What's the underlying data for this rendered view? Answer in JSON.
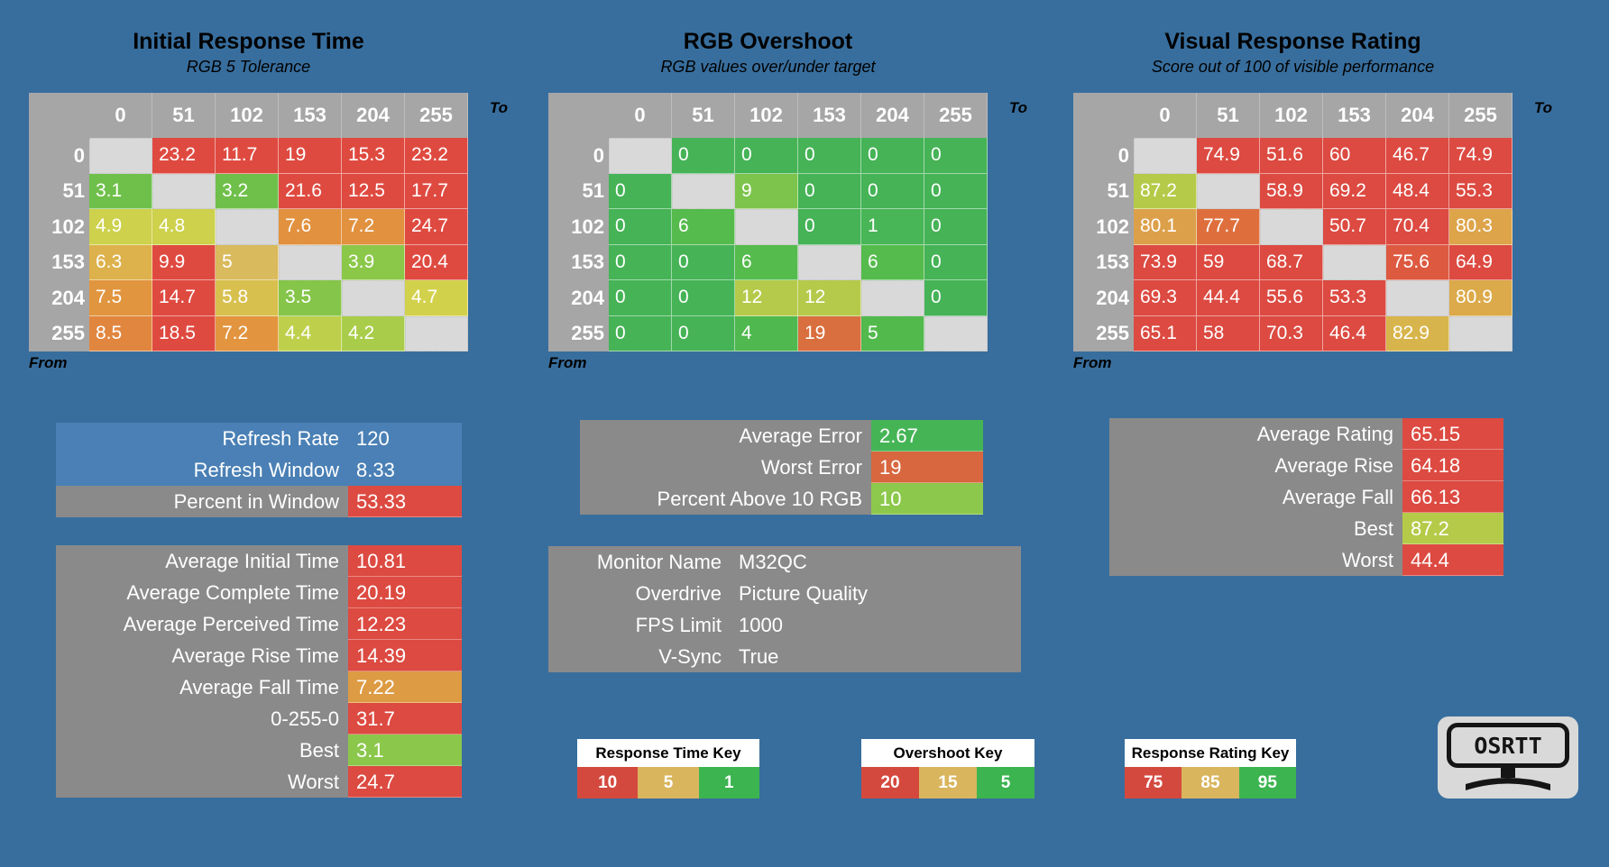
{
  "page": {
    "background": "#386e9d"
  },
  "chart_data": [
    {
      "type": "heatmap",
      "title": "Initial Response Time",
      "subtitle": "RGB 5 Tolerance",
      "col_axis_label": "To",
      "row_axis_label": "From",
      "columns": [
        "0",
        "51",
        "102",
        "153",
        "204",
        "255"
      ],
      "rows": [
        "0",
        "51",
        "102",
        "153",
        "204",
        "255"
      ],
      "values": [
        [
          null,
          "23.2",
          "11.7",
          "19",
          "15.3",
          "23.2"
        ],
        [
          "3.1",
          null,
          "3.2",
          "21.6",
          "12.5",
          "17.7"
        ],
        [
          "4.9",
          "4.8",
          null,
          "7.6",
          "7.2",
          "24.7"
        ],
        [
          "6.3",
          "9.9",
          "5",
          null,
          "3.9",
          "20.4"
        ],
        [
          "7.5",
          "14.7",
          "5.8",
          "3.5",
          null,
          "4.7"
        ],
        [
          "8.5",
          "18.5",
          "7.2",
          "4.4",
          "4.2",
          null
        ]
      ],
      "colors": [
        [
          null,
          "#df4a40",
          "#df4a40",
          "#df4a40",
          "#df4a40",
          "#df4a40"
        ],
        [
          "#6fc04a",
          null,
          "#6fc04a",
          "#df4a40",
          "#df4a40",
          "#df4a40"
        ],
        [
          "#cdd14b",
          "#cdd14b",
          null,
          "#e2913f",
          "#e2913f",
          "#df4a40"
        ],
        [
          "#ddb14b",
          "#df4a40",
          "#d9ba5c",
          null,
          "#8bc84a",
          "#df4a40"
        ],
        [
          "#e1953f",
          "#df4a40",
          "#d8c04f",
          "#85c54a",
          null,
          "#d2d14b"
        ],
        [
          "#e1863f",
          "#df4a40",
          "#e2943e",
          "#bed04b",
          "#a9cd4a",
          null
        ]
      ]
    },
    {
      "type": "heatmap",
      "title": "RGB Overshoot",
      "subtitle": "RGB values over/under target",
      "col_axis_label": "To",
      "row_axis_label": "From",
      "columns": [
        "0",
        "51",
        "102",
        "153",
        "204",
        "255"
      ],
      "rows": [
        "0",
        "51",
        "102",
        "153",
        "204",
        "255"
      ],
      "values": [
        [
          null,
          "0",
          "0",
          "0",
          "0",
          "0"
        ],
        [
          "0",
          null,
          "9",
          "0",
          "0",
          "0"
        ],
        [
          "0",
          "6",
          null,
          "0",
          "1",
          "0"
        ],
        [
          "0",
          "0",
          "6",
          null,
          "6",
          "0"
        ],
        [
          "0",
          "0",
          "12",
          "12",
          null,
          "0"
        ],
        [
          "0",
          "0",
          "4",
          "19",
          "5",
          null
        ]
      ],
      "colors": [
        [
          null,
          "#45b356",
          "#45b356",
          "#45b356",
          "#45b356",
          "#45b356"
        ],
        [
          "#45b356",
          null,
          "#7cc44c",
          "#45b356",
          "#45b356",
          "#45b356"
        ],
        [
          "#45b356",
          "#55bb4c",
          null,
          "#45b356",
          "#48b556",
          "#45b356"
        ],
        [
          "#45b356",
          "#45b356",
          "#55bb4c",
          null,
          "#55bb4c",
          "#45b356"
        ],
        [
          "#45b356",
          "#45b356",
          "#b5ca4a",
          "#b5ca4a",
          null,
          "#45b356"
        ],
        [
          "#45b356",
          "#45b356",
          "#4fb84e",
          "#d96f3e",
          "#52ba4d",
          null
        ]
      ]
    },
    {
      "type": "heatmap",
      "title": "Visual Response Rating",
      "subtitle": "Score out of 100 of visible performance",
      "col_axis_label": "To",
      "row_axis_label": "From",
      "columns": [
        "0",
        "51",
        "102",
        "153",
        "204",
        "255"
      ],
      "rows": [
        "0",
        "51",
        "102",
        "153",
        "204",
        "255"
      ],
      "values": [
        [
          null,
          "74.9",
          "51.6",
          "60",
          "46.7",
          "74.9"
        ],
        [
          "87.2",
          null,
          "58.9",
          "69.2",
          "48.4",
          "55.3"
        ],
        [
          "80.1",
          "77.7",
          null,
          "50.7",
          "70.4",
          "80.3"
        ],
        [
          "73.9",
          "59",
          "68.7",
          null,
          "75.6",
          "64.9"
        ],
        [
          "69.3",
          "44.4",
          "55.6",
          "53.3",
          null,
          "80.9"
        ],
        [
          "65.1",
          "58",
          "70.3",
          "46.4",
          "82.9",
          null
        ]
      ],
      "colors": [
        [
          null,
          "#dc4a41",
          "#dc4a41",
          "#dc4a41",
          "#dc4a41",
          "#dc4a41"
        ],
        [
          "#b5ca48",
          null,
          "#dc4a41",
          "#dc4a41",
          "#dc4a41",
          "#dc4a41"
        ],
        [
          "#dda04a",
          "#de6f3d",
          null,
          "#dc4a41",
          "#dc4a41",
          "#dda44a"
        ],
        [
          "#dc4a41",
          "#dc4a41",
          "#dc4a41",
          null,
          "#dd5940",
          "#dc4a41"
        ],
        [
          "#dc4a41",
          "#dc4a41",
          "#dc4a41",
          "#dc4a41",
          null,
          "#dcaa4b"
        ],
        [
          "#dc4a41",
          "#dc4a41",
          "#dc4a41",
          "#dc4a41",
          "#d8b54c",
          null
        ]
      ]
    }
  ],
  "panels": {
    "refresh": {
      "bg": "#4a80b5",
      "rows": [
        {
          "label": "Refresh Rate",
          "value": "120"
        },
        {
          "label": "Refresh Window",
          "value": "8.33"
        },
        {
          "label": "Percent in Window",
          "value": "53.33",
          "row_bg": "#8a8a8a",
          "value_bg": "#dc4a41"
        }
      ]
    },
    "times": {
      "bg": "#8a8a8a",
      "rows": [
        {
          "label": "Average Initial Time",
          "value": "10.81",
          "value_bg": "#dc4a41"
        },
        {
          "label": "Average Complete Time",
          "value": "20.19",
          "value_bg": "#dc4a41"
        },
        {
          "label": "Average Perceived Time",
          "value": "12.23",
          "value_bg": "#dc4a41"
        },
        {
          "label": "Average Rise Time",
          "value": "14.39",
          "value_bg": "#dc4a41"
        },
        {
          "label": "Average Fall Time",
          "value": "7.22",
          "value_bg": "#dd9b43"
        },
        {
          "label": "0-255-0",
          "value": "31.7",
          "value_bg": "#dc4a41"
        },
        {
          "label": "Best",
          "value": "3.1",
          "value_bg": "#8bc74b"
        },
        {
          "label": "Worst",
          "value": "24.7",
          "value_bg": "#dc4a41"
        }
      ]
    },
    "error": {
      "bg": "#8a8a8a",
      "rows": [
        {
          "label": "Average Error",
          "value": "2.67",
          "value_bg": "#45b455"
        },
        {
          "label": "Worst Error",
          "value": "19",
          "value_bg": "#d8673f"
        },
        {
          "label": "Percent Above 10 RGB",
          "value": "10",
          "value_bg": "#8cc84b"
        }
      ]
    },
    "monitor": {
      "bg": "#8a8a8a",
      "rows": [
        {
          "label": "Monitor Name",
          "value": "M32QC"
        },
        {
          "label": "Overdrive",
          "value": "Picture Quality"
        },
        {
          "label": "FPS Limit",
          "value": "1000"
        },
        {
          "label": "V-Sync",
          "value": "True"
        }
      ]
    },
    "rating": {
      "bg": "#8a8a8a",
      "rows": [
        {
          "label": "Average Rating",
          "value": "65.15",
          "value_bg": "#dc4a41"
        },
        {
          "label": "Average Rise",
          "value": "64.18",
          "value_bg": "#dc4a41"
        },
        {
          "label": "Average Fall",
          "value": "66.13",
          "value_bg": "#dc4a41"
        },
        {
          "label": "Best",
          "value": "87.2",
          "value_bg": "#b5ca48"
        },
        {
          "label": "Worst",
          "value": "44.4",
          "value_bg": "#dc4a41"
        }
      ]
    }
  },
  "keys": [
    {
      "title": "Response Time Key",
      "cells": [
        {
          "value": "10",
          "color": "#d4493e"
        },
        {
          "value": "5",
          "color": "#d9b55e"
        },
        {
          "value": "1",
          "color": "#3cb450"
        }
      ]
    },
    {
      "title": "Overshoot Key",
      "cells": [
        {
          "value": "20",
          "color": "#d4493e"
        },
        {
          "value": "15",
          "color": "#d9b55e"
        },
        {
          "value": "5",
          "color": "#3cb450"
        }
      ]
    },
    {
      "title": "Response Rating Key",
      "cells": [
        {
          "value": "75",
          "color": "#d4493e"
        },
        {
          "value": "85",
          "color": "#d9b55e"
        },
        {
          "value": "95",
          "color": "#3cb450"
        }
      ]
    }
  ],
  "logo": {
    "text": "OSRTT"
  }
}
